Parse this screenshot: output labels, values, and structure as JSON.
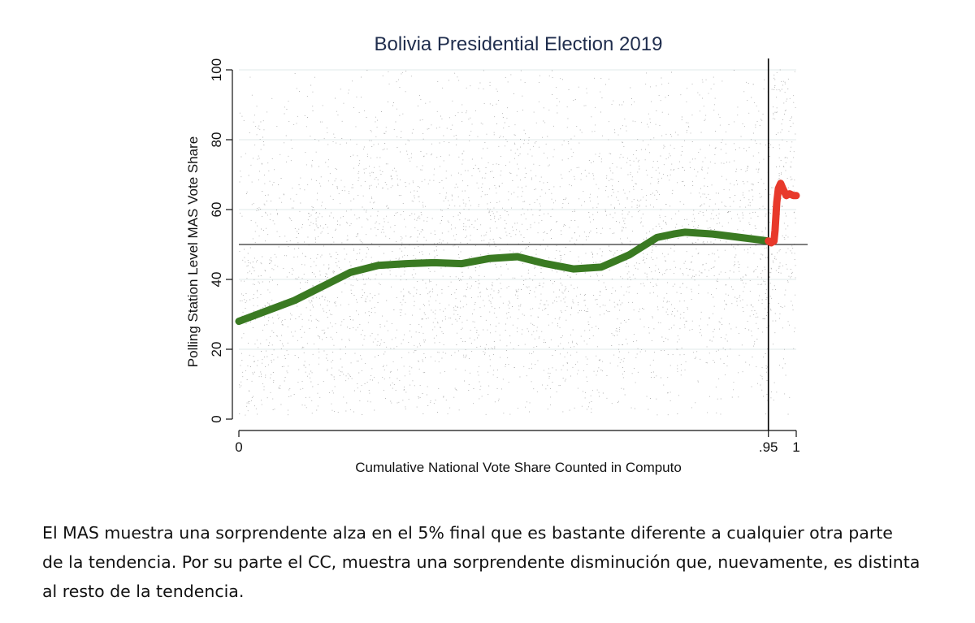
{
  "chart_data": {
    "type": "scatter",
    "title": "Bolivia Presidential Election 2019",
    "xlabel": "Cumulative National Vote Share Counted in Computo",
    "ylabel": "Polling Station Level MAS Vote Share",
    "xlim": [
      0,
      1
    ],
    "ylim": [
      0,
      100
    ],
    "x_ticks": [
      {
        "value": 0,
        "label": "0"
      },
      {
        "value": 0.95,
        "label": ".95"
      },
      {
        "value": 1,
        "label": "1"
      }
    ],
    "y_ticks": [
      {
        "value": 0,
        "label": "0"
      },
      {
        "value": 20,
        "label": "20"
      },
      {
        "value": 40,
        "label": "40"
      },
      {
        "value": 60,
        "label": "60"
      },
      {
        "value": 80,
        "label": "80"
      },
      {
        "value": 100,
        "label": "100"
      }
    ],
    "reference_lines": [
      {
        "orientation": "horizontal",
        "value": 50
      },
      {
        "orientation": "vertical",
        "value": 0.95
      }
    ],
    "series": [
      {
        "color": "#3a7a22",
        "x": [
          0,
          0.05,
          0.1,
          0.15,
          0.2,
          0.25,
          0.3,
          0.35,
          0.4,
          0.45,
          0.5,
          0.55,
          0.6,
          0.65,
          0.7,
          0.75,
          0.78,
          0.8,
          0.85,
          0.9,
          0.95
        ],
        "y": [
          28,
          31,
          34,
          38,
          42,
          44,
          44.5,
          44.8,
          44.5,
          46,
          46.5,
          44.5,
          43,
          43.5,
          47,
          52,
          53,
          53.5,
          53,
          52,
          51
        ]
      },
      {
        "color": "#e8392b",
        "x": [
          0.95,
          0.955,
          0.96,
          0.962,
          0.965,
          0.968,
          0.972,
          0.976,
          0.982,
          0.988,
          0.995,
          1.0
        ],
        "y": [
          51,
          50.5,
          51,
          54,
          62,
          66,
          67.5,
          66,
          64,
          64.5,
          64,
          64
        ]
      }
    ],
    "scatter_color": "#8c8c8c"
  },
  "caption": {
    "line1": "El MAS muestra una sorprendente alza en el 5% final que es bastante diferente a cualquier otra parte",
    "line2": "de la tendencia. Por su parte el CC, muestra una sorprendente disminución que, nuevamente, es distinta",
    "line3": "al resto de la tendencia."
  }
}
